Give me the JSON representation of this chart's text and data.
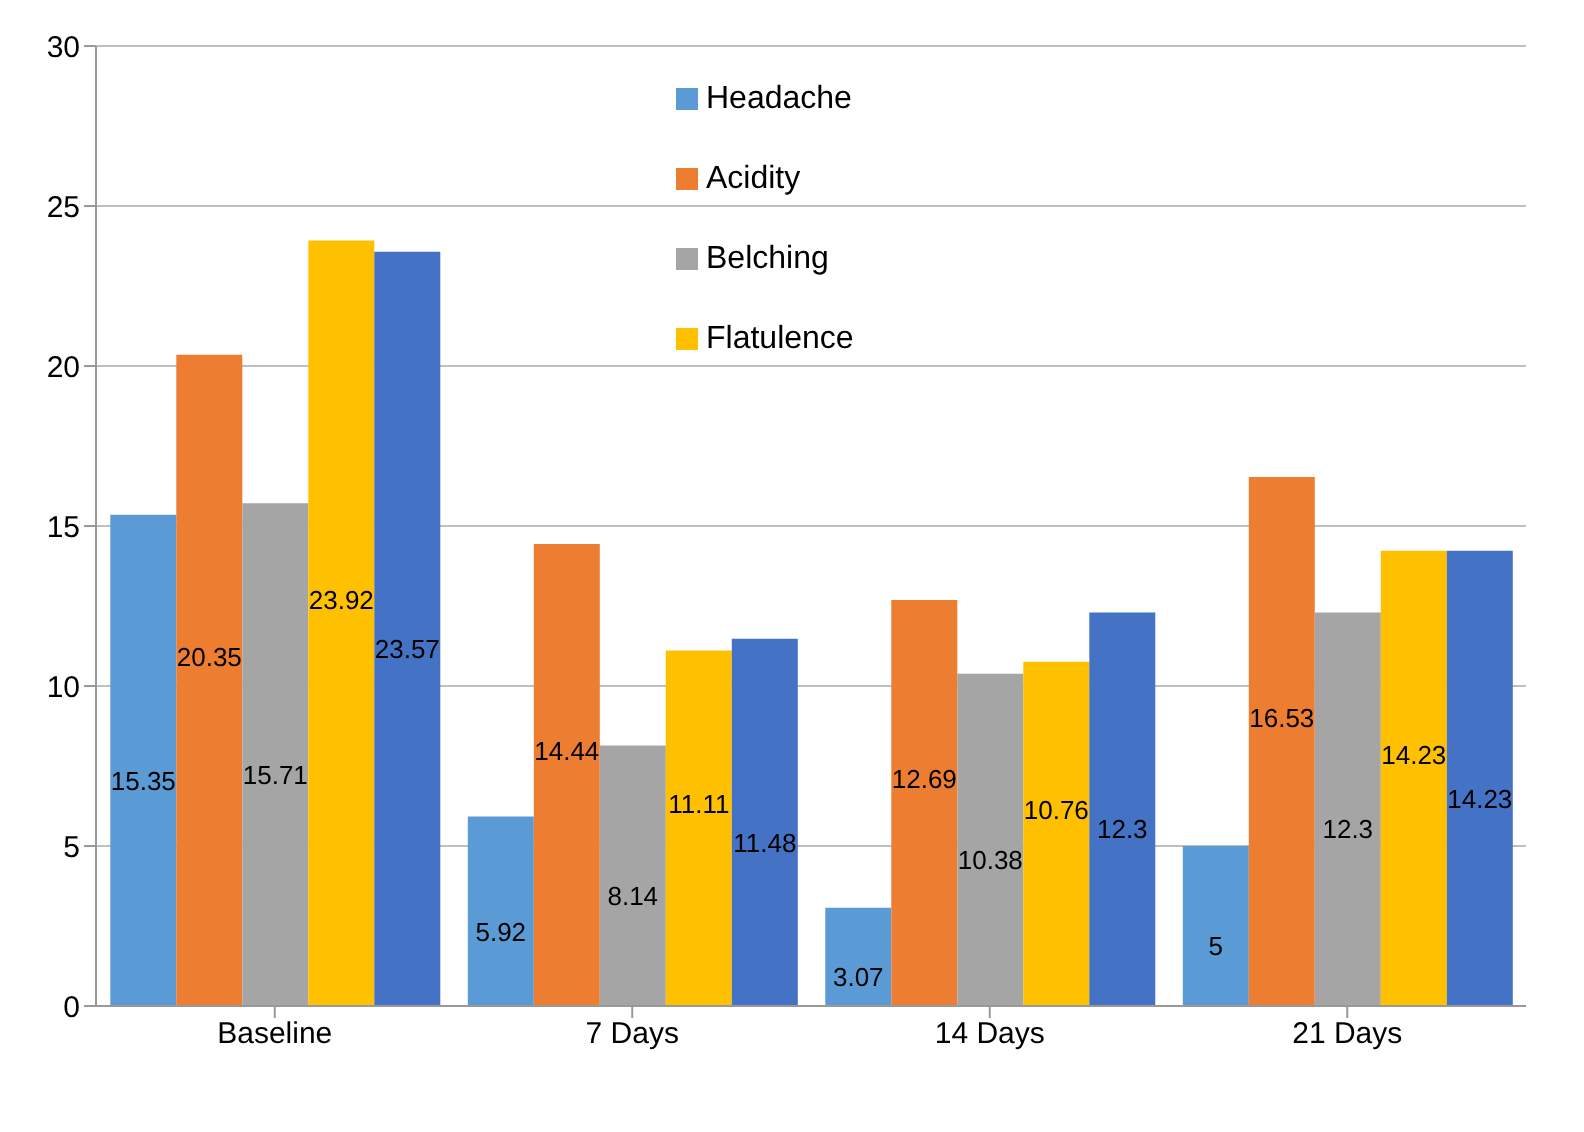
{
  "chart_data": {
    "type": "bar",
    "categories": [
      "Baseline",
      "7 Days",
      "14 Days",
      "21 Days"
    ],
    "series": [
      {
        "name": "Headache",
        "color": "#5b9bd5",
        "values": [
          15.35,
          5.92,
          3.07,
          5
        ]
      },
      {
        "name": "Acidity",
        "color": "#ed7d31",
        "values": [
          20.35,
          14.44,
          12.69,
          16.53
        ]
      },
      {
        "name": "Belching",
        "color": "#a5a5a5",
        "values": [
          15.71,
          8.14,
          10.38,
          12.3
        ]
      },
      {
        "name": "Flatulence",
        "color": "#ffc000",
        "values": [
          23.92,
          11.11,
          10.76,
          14.23
        ]
      },
      {
        "color": "#4472c4",
        "values": [
          23.57,
          11.48,
          12.3,
          14.23
        ]
      }
    ],
    "ylim": [
      0,
      30
    ],
    "yticks": [
      0,
      5,
      10,
      15,
      20,
      25,
      30
    ],
    "grid": "y",
    "legend": "top",
    "data_labels": true
  }
}
